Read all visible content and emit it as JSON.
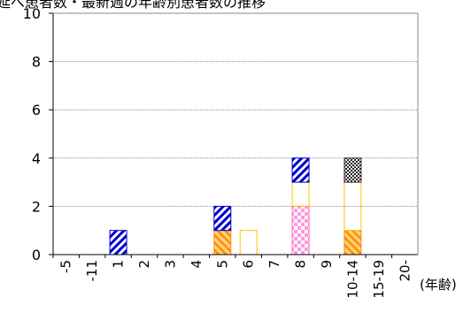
{
  "title": "延べ患者数・最新週の年齢別患者数の推移",
  "chart_data": {
    "type": "bar",
    "stacked": true,
    "categories": [
      "-5",
      "-11",
      "1",
      "2",
      "3",
      "4",
      "5",
      "6",
      "7",
      "8",
      "9",
      "10-14",
      "15-19",
      "20-"
    ],
    "x_unit_label": "(年齢)",
    "ylim": [
      0,
      10
    ],
    "yticks": [
      0,
      2,
      4,
      6,
      8,
      10
    ],
    "grid": true,
    "series": [
      {
        "pattern": "orange-hatch",
        "color": "#FF8C00",
        "values": [
          0,
          0,
          0,
          0,
          0,
          0,
          1,
          0,
          0,
          0,
          0,
          1,
          0,
          0
        ]
      },
      {
        "pattern": "pink-check",
        "color": "#FF66CC",
        "values": [
          0,
          0,
          0,
          0,
          0,
          0,
          0,
          0,
          0,
          2,
          0,
          0,
          0,
          0
        ]
      },
      {
        "pattern": "solid-gold",
        "color": "#FFC000",
        "values": [
          0,
          0,
          0,
          0,
          0,
          0,
          0,
          1,
          0,
          1,
          0,
          2,
          0,
          0
        ]
      },
      {
        "pattern": "blue-hatch",
        "color": "#0000CC",
        "values": [
          0,
          0,
          1,
          0,
          0,
          0,
          1,
          0,
          0,
          1,
          0,
          0,
          0,
          0
        ]
      },
      {
        "pattern": "black-check",
        "color": "#333333",
        "values": [
          0,
          0,
          0,
          0,
          0,
          0,
          0,
          0,
          0,
          0,
          0,
          1,
          0,
          0
        ]
      }
    ]
  }
}
